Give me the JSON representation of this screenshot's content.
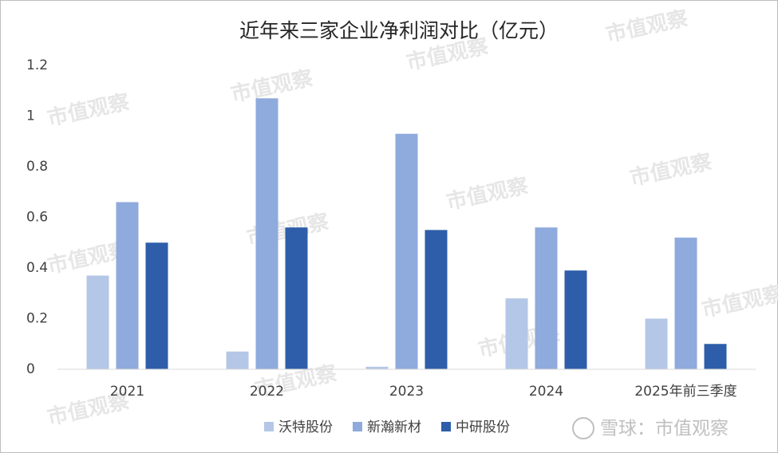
{
  "chart_data": {
    "type": "bar",
    "title": "近年来三家企业净利润对比（亿元）",
    "categories": [
      "2021",
      "2022",
      "2023",
      "2024",
      "2025年前三季度"
    ],
    "series": [
      {
        "name": "沃特股份",
        "color": "#b4c7e7",
        "values": [
          0.37,
          0.07,
          0.01,
          0.28,
          0.2
        ]
      },
      {
        "name": "新瀚新材",
        "color": "#8faadc",
        "values": [
          0.66,
          1.07,
          0.93,
          0.56,
          0.52
        ]
      },
      {
        "name": "中研股份",
        "color": "#2e5ea9",
        "values": [
          0.5,
          0.56,
          0.55,
          0.39,
          0.1
        ]
      }
    ],
    "ylim": [
      0,
      1.2
    ],
    "yticks": [
      0,
      0.2,
      0.4,
      0.6,
      0.8,
      1,
      1.2
    ],
    "grid": false,
    "legend": "bottom",
    "watermark": "市值观察",
    "source_mark": "雪球：市值观察"
  }
}
